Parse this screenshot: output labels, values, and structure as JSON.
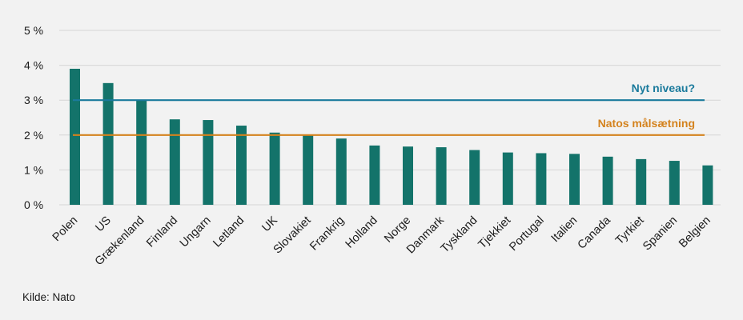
{
  "chart_data": {
    "type": "bar",
    "title": "",
    "xlabel": "",
    "ylabel": "",
    "ylim": [
      0,
      5
    ],
    "yticks": [
      0,
      1,
      2,
      3,
      4,
      5
    ],
    "ytick_labels": [
      "0 %",
      "1 %",
      "2 %",
      "3 %",
      "4 %",
      "5 %"
    ],
    "grid": true,
    "categories": [
      "Polen",
      "US",
      "Grækenland",
      "Finland",
      "Ungarn",
      "Letland",
      "UK",
      "Slovakiet",
      "Frankrig",
      "Holland",
      "Norge",
      "Danmark",
      "Tyskland",
      "Tjekkiet",
      "Portugal",
      "Italien",
      "Canada",
      "Tyrkiet",
      "Spanien",
      "Belgien"
    ],
    "values": [
      3.9,
      3.49,
      3.01,
      2.45,
      2.43,
      2.27,
      2.07,
      2.0,
      1.9,
      1.7,
      1.67,
      1.65,
      1.57,
      1.5,
      1.48,
      1.46,
      1.38,
      1.31,
      1.26,
      1.13
    ],
    "bar_color": "#13736a",
    "reference_lines": [
      {
        "label": "Nyt niveau?",
        "value": 3.0,
        "color": "#1a7a9c"
      },
      {
        "label": "Natos målsætning",
        "value": 2.0,
        "color": "#d4821d"
      }
    ]
  },
  "source": "Kilde: Nato"
}
